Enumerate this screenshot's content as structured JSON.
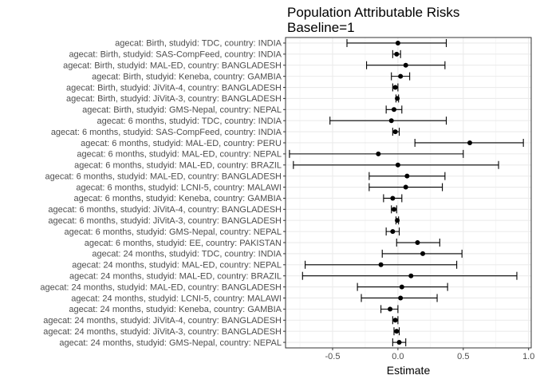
{
  "chart_data": {
    "type": "forest",
    "title": "Population Attributable Risks",
    "subtitle": "Baseline=1",
    "xlabel": "Estimate",
    "ylabel": "",
    "xlim": [
      -0.86,
      1.02
    ],
    "xticks": [
      -0.5,
      0.0,
      0.5,
      1.0
    ],
    "xtick_labels": [
      "-0.5",
      "0.0",
      "0.5",
      "1.0"
    ],
    "grid": true,
    "categories": [
      "agecat: Birth, studyid: TDC, country: INDIA",
      "agecat: Birth, studyid: SAS-CompFeed, country: INDIA",
      "agecat: Birth, studyid: MAL-ED, country: BANGLADESH",
      "agecat: Birth, studyid: Keneba, country: GAMBIA",
      "agecat: Birth, studyid: JiVitA-4, country: BANGLADESH",
      "agecat: Birth, studyid: JiVitA-3, country: BANGLADESH",
      "agecat: Birth, studyid: GMS-Nepal, country: NEPAL",
      "agecat: 6 months, studyid: TDC, country: INDIA",
      "agecat: 6 months, studyid: SAS-CompFeed, country: INDIA",
      "agecat: 6 months, studyid: MAL-ED, country: PERU",
      "agecat: 6 months, studyid: MAL-ED, country: NEPAL",
      "agecat: 6 months, studyid: MAL-ED, country: BRAZIL",
      "agecat: 6 months, studyid: MAL-ED, country: BANGLADESH",
      "agecat: 6 months, studyid: LCNI-5, country: MALAWI",
      "agecat: 6 months, studyid: Keneba, country: GAMBIA",
      "agecat: 6 months, studyid: JiVitA-4, country: BANGLADESH",
      "agecat: 6 months, studyid: JiVitA-3, country: BANGLADESH",
      "agecat: 6 months, studyid: GMS-Nepal, country: NEPAL",
      "agecat: 6 months, studyid: EE, country: PAKISTAN",
      "agecat: 24 months, studyid: TDC, country: INDIA",
      "agecat: 24 months, studyid: MAL-ED, country: NEPAL",
      "agecat: 24 months, studyid: MAL-ED, country: BRAZIL",
      "agecat: 24 months, studyid: MAL-ED, country: BANGLADESH",
      "agecat: 24 months, studyid: LCNI-5, country: MALAWI",
      "agecat: 24 months, studyid: Keneba, country: GAMBIA",
      "agecat: 24 months, studyid: JiVitA-4, country: BANGLADESH",
      "agecat: 24 months, studyid: JiVitA-3, country: BANGLADESH",
      "agecat: 24 months, studyid: GMS-Nepal, country: NEPAL"
    ],
    "estimate": [
      0.0,
      -0.01,
      0.06,
      0.02,
      -0.02,
      -0.005,
      -0.03,
      -0.05,
      -0.02,
      0.55,
      -0.15,
      0.0,
      0.07,
      0.06,
      -0.04,
      -0.03,
      -0.005,
      -0.04,
      0.15,
      0.19,
      -0.13,
      0.1,
      0.03,
      0.02,
      -0.06,
      -0.02,
      -0.01,
      0.01
    ],
    "ci_lower": [
      -0.39,
      -0.04,
      -0.24,
      -0.05,
      -0.04,
      -0.015,
      -0.09,
      -0.52,
      -0.04,
      0.13,
      -0.83,
      -0.8,
      -0.22,
      -0.22,
      -0.11,
      -0.05,
      -0.015,
      -0.09,
      -0.01,
      -0.12,
      -0.71,
      -0.73,
      -0.31,
      -0.28,
      -0.13,
      -0.04,
      -0.03,
      -0.04
    ],
    "ci_upper": [
      0.37,
      0.02,
      0.36,
      0.09,
      0.0,
      0.005,
      0.03,
      0.37,
      0.01,
      0.96,
      0.5,
      0.77,
      0.36,
      0.34,
      0.03,
      -0.01,
      0.005,
      0.01,
      0.32,
      0.49,
      0.45,
      0.91,
      0.38,
      0.3,
      0.0,
      0.0,
      0.01,
      0.06
    ]
  }
}
